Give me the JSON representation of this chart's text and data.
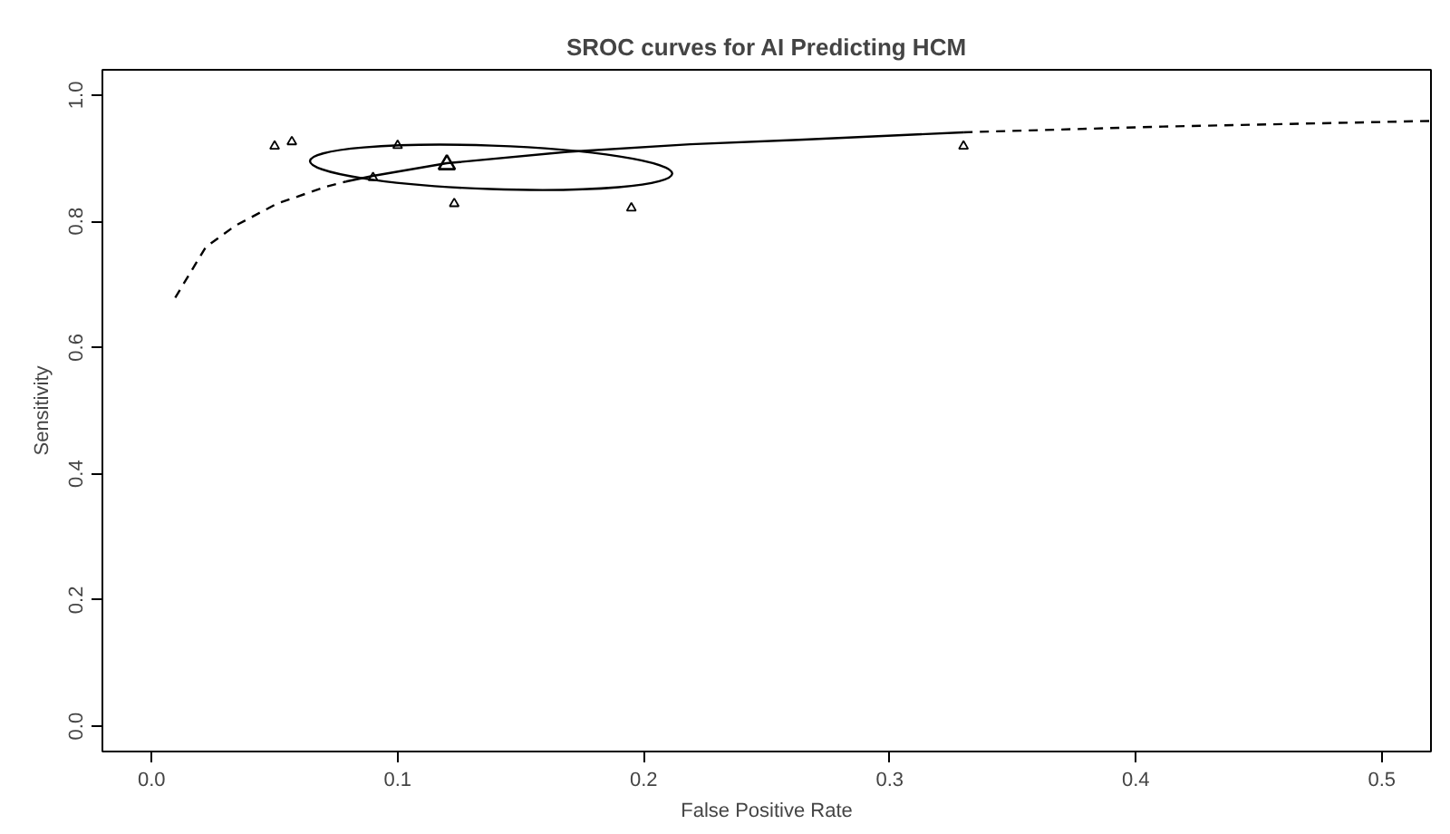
{
  "chart_data": {
    "type": "scatter",
    "title": "SROC curves for AI Predicting HCM",
    "xlabel": "False Positive Rate",
    "ylabel": "Sensitivity",
    "xlim": [
      -0.02,
      0.52
    ],
    "ylim": [
      -0.04,
      1.04
    ],
    "xticks": [
      {
        "value": 0,
        "label": "0.0"
      },
      0.1,
      0.2,
      0.3,
      0.4,
      0.5
    ],
    "yticks": [
      {
        "value": 0,
        "label": "0.0"
      },
      0.2,
      0.4,
      0.6,
      0.8,
      {
        "value": 1,
        "label": "1.0"
      }
    ],
    "grid": false,
    "series": [
      {
        "type": "line",
        "line_style": "dashed",
        "color": "#000000",
        "x": [
          0.0096,
          0.022,
          0.034,
          0.051,
          0.071,
          0.079
        ],
        "values": [
          0.679,
          0.759,
          0.793,
          0.828,
          0.855,
          0.863
        ]
      },
      {
        "type": "line",
        "line_style": "solid",
        "color": "#000000",
        "x": [
          0.079,
          0.09,
          0.12,
          0.169,
          0.219,
          0.263,
          0.33
        ],
        "values": [
          0.863,
          0.872,
          0.892,
          0.91,
          0.922,
          0.929,
          0.941
        ]
      },
      {
        "type": "line",
        "line_style": "dashed",
        "color": "#000000",
        "x": [
          0.33,
          0.411,
          0.52
        ],
        "values": [
          0.941,
          0.95,
          0.959
        ]
      },
      {
        "marker": "triangle",
        "color": "#000000",
        "x": [
          0.05,
          0.057,
          0.1,
          0.09,
          0.123,
          0.195,
          0.33
        ],
        "values": [
          0.919,
          0.926,
          0.92,
          0.869,
          0.828,
          0.821,
          0.919
        ]
      },
      {
        "marker": "triangle",
        "color": "#000000",
        "x": [
          0.12
        ],
        "values": [
          0.89
        ]
      }
    ]
  }
}
